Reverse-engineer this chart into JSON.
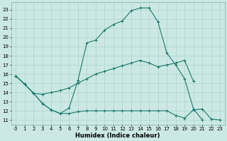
{
  "xlabel": "Humidex (Indice chaleur)",
  "bg_color": "#cce8e4",
  "line_color": "#1a7a6e",
  "grid_color": "#aad4cc",
  "xlim": [
    -0.5,
    23.5
  ],
  "ylim": [
    10.5,
    23.8
  ],
  "yticks": [
    11,
    12,
    13,
    14,
    15,
    16,
    17,
    18,
    19,
    20,
    21,
    22,
    23
  ],
  "xticks": [
    0,
    1,
    2,
    3,
    4,
    5,
    6,
    7,
    8,
    9,
    10,
    11,
    12,
    13,
    14,
    15,
    16,
    17,
    18,
    19,
    20,
    21,
    22,
    23
  ],
  "line_top_x": [
    0,
    1,
    2,
    3,
    4,
    5,
    6,
    7,
    8,
    9,
    10,
    11,
    12,
    13,
    14,
    15,
    16,
    17,
    18,
    19,
    20,
    21
  ],
  "line_top_y": [
    15.8,
    14.9,
    13.9,
    12.8,
    12.1,
    11.7,
    12.3,
    15.3,
    19.4,
    19.7,
    20.8,
    21.4,
    21.8,
    22.9,
    23.2,
    23.2,
    21.7,
    18.3,
    17.0,
    15.5,
    12.2,
    11.0
  ],
  "line_mid_x": [
    0,
    1,
    2,
    3,
    4,
    5,
    6,
    7,
    8,
    9,
    10,
    11,
    12,
    13,
    14,
    15,
    16,
    17,
    18,
    19,
    20
  ],
  "line_mid_y": [
    15.8,
    14.9,
    13.9,
    13.8,
    14.0,
    14.2,
    14.5,
    15.0,
    15.5,
    16.0,
    16.3,
    16.6,
    16.9,
    17.2,
    17.5,
    17.2,
    16.8,
    17.0,
    17.2,
    17.5,
    15.2
  ],
  "line_bot_x": [
    0,
    1,
    2,
    3,
    4,
    5,
    6,
    7,
    8,
    9,
    10,
    11,
    12,
    13,
    14,
    15,
    16,
    17,
    18,
    19,
    20,
    21,
    22,
    23
  ],
  "line_bot_y": [
    15.8,
    14.9,
    13.9,
    12.8,
    12.1,
    11.7,
    11.7,
    11.9,
    12.0,
    12.0,
    12.0,
    12.0,
    12.0,
    12.0,
    12.0,
    12.0,
    12.0,
    12.0,
    11.5,
    11.2,
    12.1,
    12.2,
    11.1,
    11.0
  ]
}
